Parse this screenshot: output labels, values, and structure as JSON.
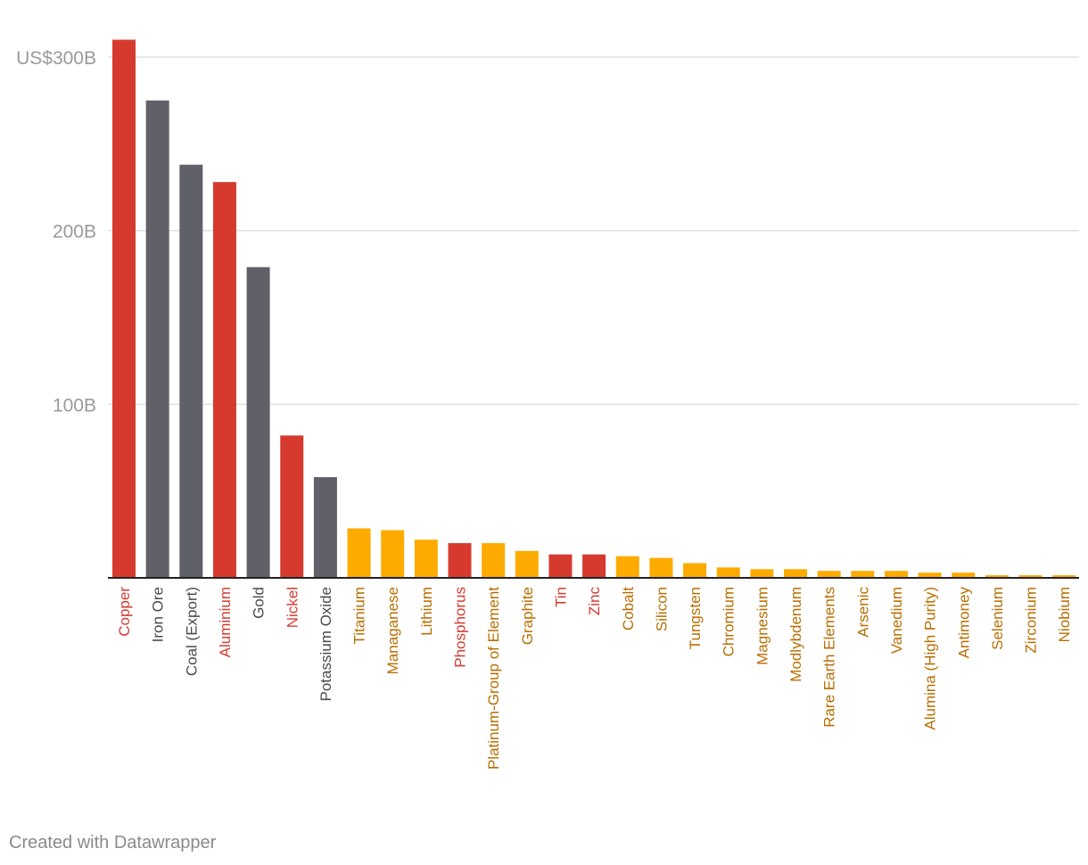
{
  "chart_data": {
    "type": "bar",
    "title": "",
    "xlabel": "",
    "ylabel": "",
    "ylim": [
      0,
      300
    ],
    "yticks": [
      {
        "value": 100,
        "label": "100B"
      },
      {
        "value": 200,
        "label": "200B"
      },
      {
        "value": 300,
        "label": "US$300B"
      }
    ],
    "grid": true,
    "legend": "none",
    "colors": {
      "red": "#d63a2f",
      "gray": "#5f6068",
      "orange": "#fdab00",
      "orange_label": "#b86e00",
      "gray_label": "#4a4a4a",
      "axis_label": "#9a9a9a",
      "gridline": "#e0e0e0"
    },
    "bars": [
      {
        "category": "Copper",
        "value": 310,
        "group": "red"
      },
      {
        "category": "Iron Ore",
        "value": 275,
        "group": "gray"
      },
      {
        "category": "Coal (Export)",
        "value": 238,
        "group": "gray"
      },
      {
        "category": "Aluminium",
        "value": 228,
        "group": "red"
      },
      {
        "category": "Gold",
        "value": 179,
        "group": "gray"
      },
      {
        "category": "Nickel",
        "value": 82,
        "group": "red"
      },
      {
        "category": "Potassium Oxide",
        "value": 58,
        "group": "gray"
      },
      {
        "category": "Titanium",
        "value": 28.5,
        "group": "orange"
      },
      {
        "category": "Managanese",
        "value": 27.5,
        "group": "orange"
      },
      {
        "category": "Lithium",
        "value": 22,
        "group": "orange"
      },
      {
        "category": "Phosphorus",
        "value": 20,
        "group": "red"
      },
      {
        "category": "Platinum-Group of Element",
        "value": 20,
        "group": "orange"
      },
      {
        "category": "Graphite",
        "value": 15.5,
        "group": "orange"
      },
      {
        "category": "Tin",
        "value": 13.5,
        "group": "red"
      },
      {
        "category": "Zinc",
        "value": 13.5,
        "group": "red"
      },
      {
        "category": "Cobalt",
        "value": 12.5,
        "group": "orange"
      },
      {
        "category": "Silicon",
        "value": 11.5,
        "group": "orange"
      },
      {
        "category": "Tungsten",
        "value": 8.5,
        "group": "orange"
      },
      {
        "category": "Chromium",
        "value": 6,
        "group": "orange"
      },
      {
        "category": "Magnesium",
        "value": 5,
        "group": "orange"
      },
      {
        "category": "Modlybdenum",
        "value": 5,
        "group": "orange"
      },
      {
        "category": "Rare Earth Elements",
        "value": 4,
        "group": "orange"
      },
      {
        "category": "Arsenic",
        "value": 4,
        "group": "orange"
      },
      {
        "category": "Vanedium",
        "value": 4,
        "group": "orange"
      },
      {
        "category": "Alumina (High Purity)",
        "value": 3,
        "group": "orange"
      },
      {
        "category": "Antimoney",
        "value": 3,
        "group": "orange"
      },
      {
        "category": "Selenium",
        "value": 1.5,
        "group": "orange"
      },
      {
        "category": "Zirconium",
        "value": 1.5,
        "group": "orange"
      },
      {
        "category": "Niobium",
        "value": 1.5,
        "group": "orange"
      }
    ]
  },
  "footer": {
    "credit": "Created with Datawrapper"
  }
}
